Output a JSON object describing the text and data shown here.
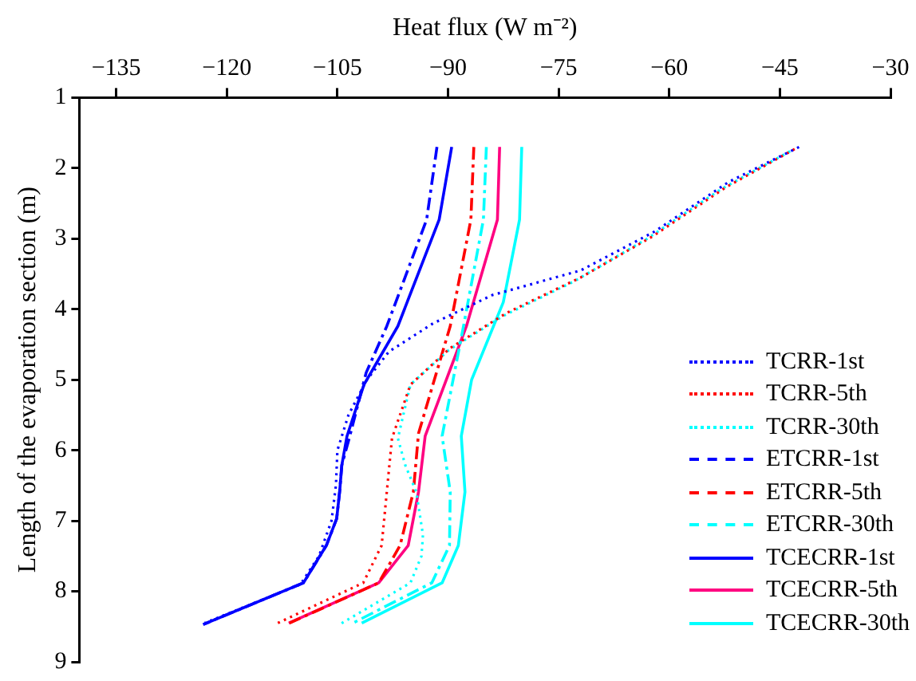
{
  "chart_data": {
    "type": "line",
    "xlabel": "Heat flux (W m⁻²)",
    "ylabel": "Length of the evaporation section (m)",
    "xlim": [
      -140,
      -30
    ],
    "xticks": [
      -135,
      -120,
      -105,
      -90,
      -75,
      -60,
      -45,
      -30
    ],
    "ylim": [
      9,
      1
    ],
    "yticks": [
      1,
      2,
      3,
      4,
      5,
      6,
      7,
      8,
      9
    ],
    "grid": false,
    "legend": "bottom right",
    "marker": "none",
    "series": [
      {
        "name": "TCRR-1st",
        "color": "#0000ff",
        "line_style": "dotted",
        "x": [
          -42.4,
          -52,
          -62,
          -72,
          -84,
          -92,
          -98,
          -101,
          -103.5,
          -105,
          -105.2,
          -105.8,
          -107.5,
          -110,
          -123
        ],
        "values": [
          1.7,
          2.2,
          2.9,
          3.45,
          3.8,
          4.2,
          4.6,
          5.0,
          5.5,
          6.0,
          6.5,
          7.0,
          7.5,
          7.9,
          8.45
        ]
      },
      {
        "name": "TCRR-5th",
        "color": "#ff0000",
        "line_style": "dotted",
        "x": [
          -43,
          -52.3,
          -62.3,
          -72,
          -82,
          -89.7,
          -95.1,
          -97.6,
          -98.3,
          -99,
          -101.5,
          -113.5
        ],
        "values": [
          1.73,
          2.27,
          2.97,
          3.55,
          4.05,
          4.55,
          5.07,
          5.83,
          6.59,
          7.35,
          7.88,
          8.47
        ]
      },
      {
        "name": "TCRR-30th",
        "color": "#00ffff",
        "line_style": "dotted",
        "x": [
          -43.6,
          -53,
          -63,
          -72.8,
          -82.6,
          -89.9,
          -95.1,
          -96.8,
          -95.8,
          -94.3,
          -93.4,
          -93.6,
          -95.1,
          -104.7
        ],
        "values": [
          1.76,
          2.3,
          3.0,
          3.6,
          4.1,
          4.58,
          5.07,
          5.83,
          6.21,
          6.59,
          7.2,
          7.5,
          7.88,
          8.47
        ]
      },
      {
        "name": "ETCRR-1st",
        "color": "#0000ff",
        "line_style": "dashed",
        "x": [
          -91.5,
          -92.9,
          -98.3,
          -101.1,
          -103.4,
          -104.4,
          -104.7,
          -105.1,
          -106.5,
          -109.6,
          -123.2
        ],
        "values": [
          1.7,
          2.73,
          4.24,
          4.9,
          5.83,
          6.21,
          6.59,
          6.97,
          7.35,
          7.88,
          8.47
        ]
      },
      {
        "name": "ETCRR-5th",
        "color": "#ff0000",
        "line_style": "dashed",
        "x": [
          -86.5,
          -86.9,
          -89.7,
          -94,
          -94.7,
          -96.5,
          -99.4,
          -111.5
        ],
        "values": [
          1.7,
          2.73,
          4.24,
          5.76,
          6.59,
          7.35,
          7.88,
          8.45
        ]
      },
      {
        "name": "ETCRR-30th",
        "color": "#00ffff",
        "line_style": "dashed",
        "x": [
          -84.8,
          -85.2,
          -87.9,
          -90.8,
          -89.7,
          -89.8,
          -92.2,
          -102.9
        ],
        "values": [
          1.7,
          2.73,
          4.24,
          5.8,
          6.59,
          7.35,
          7.88,
          8.45
        ]
      },
      {
        "name": "TCECRR-1st",
        "color": "#0000ff",
        "line_style": "solid",
        "x": [
          -89.5,
          -91.2,
          -96.8,
          -101.4,
          -103.7,
          -104.4,
          -104.7,
          -105.1,
          -106.5,
          -109.6,
          -123.2
        ],
        "values": [
          1.7,
          2.73,
          4.24,
          5.07,
          5.8,
          6.21,
          6.59,
          6.97,
          7.35,
          7.88,
          8.47
        ]
      },
      {
        "name": "TCECRR-5th",
        "color": "#ff0080",
        "line_style": "solid",
        "x": [
          -83,
          -83.3,
          -87.5,
          -93.1,
          -94,
          -95.4,
          -99.4,
          -111.6
        ],
        "values": [
          1.7,
          2.73,
          4.24,
          5.8,
          6.59,
          7.35,
          7.88,
          8.45
        ]
      },
      {
        "name": "TCECRR-30th",
        "color": "#00ffff",
        "line_style": "solid",
        "x": [
          -80,
          -80.3,
          -82.5,
          -86.8,
          -88.2,
          -87.7,
          -88.6,
          -90.8,
          -101.7
        ],
        "values": [
          1.7,
          2.73,
          3.9,
          5.0,
          5.8,
          6.59,
          7.35,
          7.88,
          8.45
        ]
      }
    ]
  }
}
